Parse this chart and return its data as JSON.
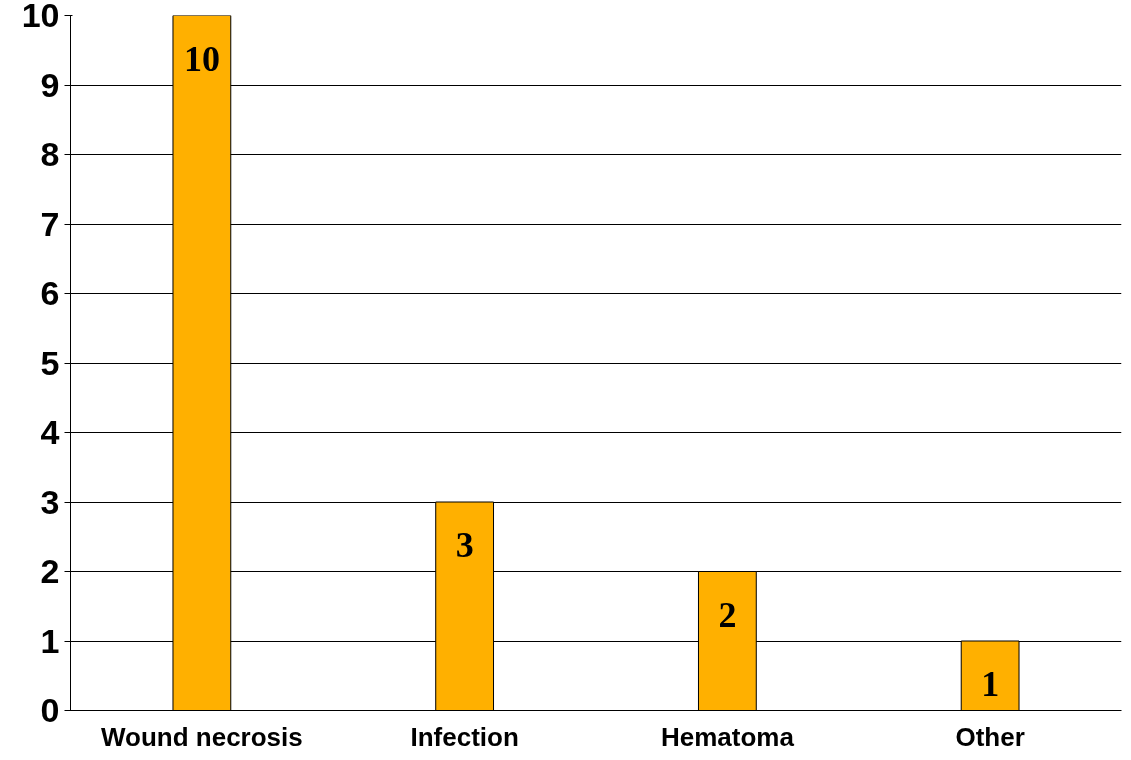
{
  "chart_data": {
    "type": "bar",
    "categories": [
      "Wound necrosis",
      "Infection",
      "Hematoma",
      "Other"
    ],
    "values": [
      10,
      3,
      2,
      1
    ],
    "color": "#ffb000",
    "ylim": [
      0,
      10
    ],
    "yticks": [
      0,
      1,
      2,
      3,
      4,
      5,
      6,
      7,
      8,
      9,
      10
    ],
    "grid": "y",
    "data_labels": true
  }
}
